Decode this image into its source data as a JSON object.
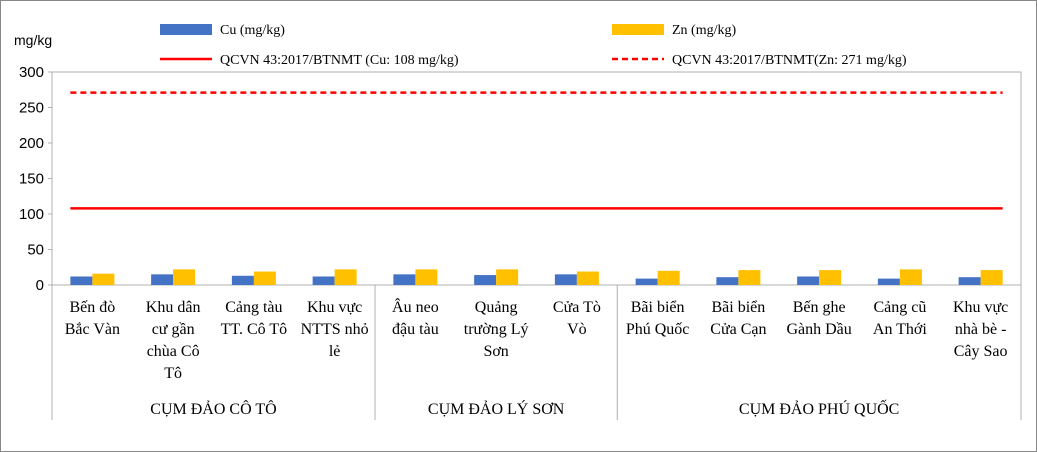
{
  "chart_data": {
    "type": "bar",
    "ylabel": "mg/kg",
    "ylim": [
      0,
      300
    ],
    "yticks": [
      "0",
      "50",
      "100",
      "150",
      "200",
      "250",
      "300"
    ],
    "grid": false,
    "legend_position": "top",
    "categories": [
      [
        "Bến đò",
        "Bắc Vàn"
      ],
      [
        "Khu dân",
        "cư gần",
        "chùa Cô",
        "Tô"
      ],
      [
        "Cảng tàu",
        "TT. Cô Tô"
      ],
      [
        "Khu vực",
        "NTTS nhỏ",
        "lẻ"
      ],
      [
        "Âu neo",
        "đậu tàu"
      ],
      [
        "Quảng",
        "trường Lý",
        "Sơn"
      ],
      [
        "Cửa Tò",
        "Vò"
      ],
      [
        "Bãi biển",
        "Phú Quốc"
      ],
      [
        "Bãi biển",
        "Cửa Cạn"
      ],
      [
        "Bến ghe",
        "Gành Dầu"
      ],
      [
        "Cảng cũ",
        "An Thới"
      ],
      [
        "Khu vực",
        "nhà bè -",
        "Cây Sao"
      ]
    ],
    "groups": [
      {
        "name": "CỤM ĐẢO CÔ TÔ",
        "count": 4
      },
      {
        "name": "CỤM ĐẢO LÝ SƠN",
        "count": 3
      },
      {
        "name": "CỤM ĐẢO PHÚ QUỐC",
        "count": 5
      }
    ],
    "series": [
      {
        "name": "Cu (mg/kg)",
        "color": "#4472C4",
        "values": [
          12,
          15,
          13,
          12,
          15,
          14,
          15,
          9,
          11,
          12,
          9,
          11
        ]
      },
      {
        "name": "Zn (mg/kg)",
        "color": "#FFC000",
        "values": [
          16,
          22,
          19,
          22,
          22,
          22,
          19,
          20,
          21,
          21,
          22,
          21
        ]
      }
    ],
    "reference_lines": [
      {
        "name": "QCVN 43:2017/BTNMT (Cu: 108 mg/kg)",
        "value": 108,
        "color": "#FF0000",
        "style": "solid"
      },
      {
        "name": "QCVN 43:2017/BTNMT(Zn: 271 mg/kg)",
        "value": 271,
        "color": "#FF0000",
        "style": "dashed"
      }
    ]
  }
}
